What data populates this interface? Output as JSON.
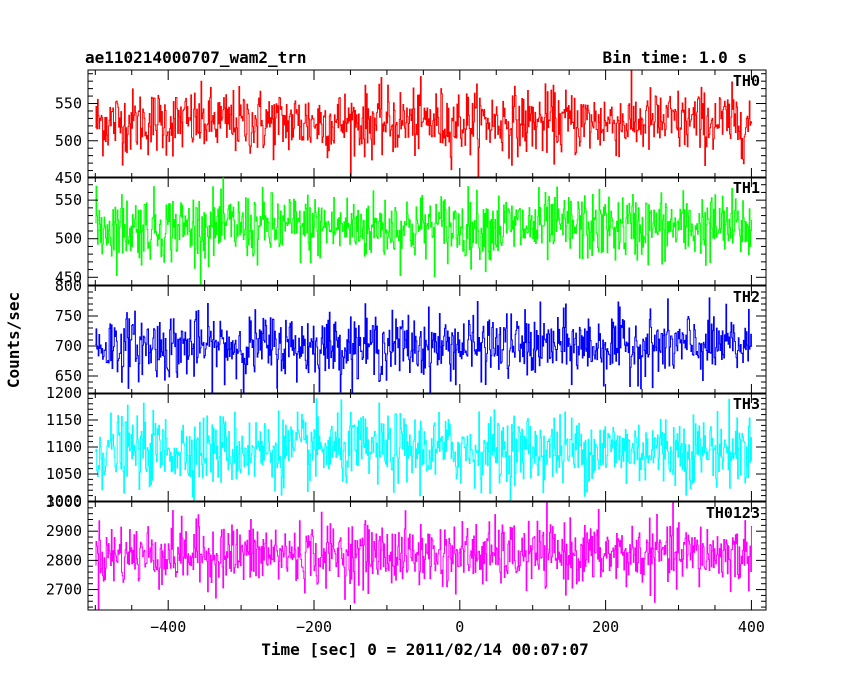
{
  "header": {
    "title": "ae110214000707_wam2_trn",
    "bin_time": "Bin time: 1.0 s"
  },
  "chart_data": {
    "type": "line",
    "ylabel": "Counts/sec",
    "xlabel": "Time [sec] 0 = 2011/02/14 00:07:07",
    "xlim": [
      -510,
      420
    ],
    "x_range": [
      -500,
      400
    ],
    "x_ticks": [
      -400,
      -200,
      0,
      200,
      400
    ],
    "x_tick_labels": [
      "−400",
      "−200",
      "0",
      "200",
      "400"
    ],
    "bin_size": 1.0,
    "panels": [
      {
        "name": "TH0",
        "color": "#ff0000",
        "ylim": [
          450,
          595
        ],
        "mean": 525,
        "spread": 22,
        "y_ticks": [
          450,
          500,
          550
        ],
        "y_tick_labels": [
          "450",
          "500",
          "550"
        ]
      },
      {
        "name": "TH1",
        "color": "#00ff00",
        "ylim": [
          440,
          580
        ],
        "mean": 515,
        "spread": 22,
        "y_ticks": [
          450,
          500,
          550
        ],
        "y_tick_labels": [
          "450",
          "500",
          "550"
        ]
      },
      {
        "name": "TH2",
        "color": "#0000ff",
        "ylim": [
          620,
          800
        ],
        "mean": 700,
        "spread": 27,
        "y_ticks": [
          650,
          700,
          750,
          800
        ],
        "y_tick_labels": [
          "650",
          "700",
          "750",
          "800"
        ]
      },
      {
        "name": "TH3",
        "color": "#00ffff",
        "ylim": [
          1000,
          1200
        ],
        "mean": 1095,
        "spread": 33,
        "y_ticks": [
          1000,
          1050,
          1100,
          1150,
          1200
        ],
        "y_tick_labels": [
          "1000",
          "1050",
          "1100",
          "1150",
          "1200"
        ]
      },
      {
        "name": "TH0123",
        "color": "#ff00ff",
        "ylim": [
          2630,
          3000
        ],
        "mean": 2820,
        "spread": 55,
        "y_ticks": [
          2700,
          2800,
          2900,
          3000
        ],
        "y_tick_labels": [
          "2700",
          "2800",
          "2900",
          "3000"
        ]
      }
    ]
  }
}
